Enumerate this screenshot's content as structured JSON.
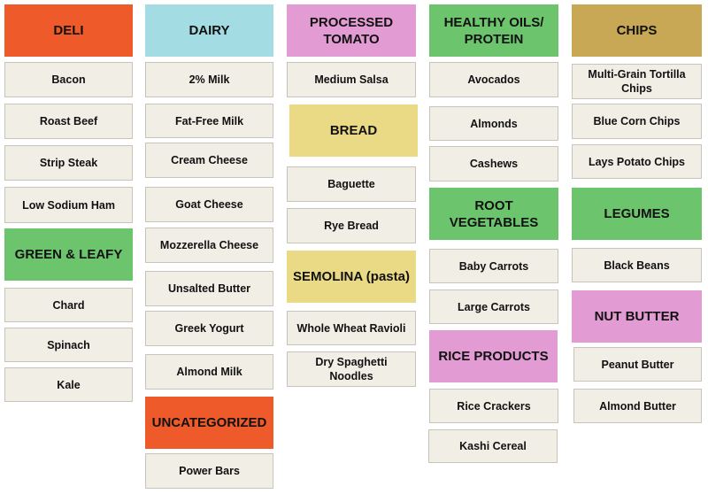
{
  "colors": {
    "deli": "#ef5a2a",
    "dairy": "#a3dde3",
    "processed_tomato": "#e39cd3",
    "healthy_oils": "#6cc56c",
    "chips": "#c8a854",
    "green_leafy": "#6cc56c",
    "bread": "#ead985",
    "semolina": "#ead985",
    "root_vegetables": "#6cc56c",
    "legumes": "#6cc56c",
    "rice_products": "#e39cd3",
    "nut_butter": "#e39cd3",
    "uncategorized": "#ef5a2a",
    "item_bg": "#f1eee6"
  },
  "categories": {
    "deli": "DELI",
    "dairy": "DAIRY",
    "processed_tomato": "PROCESSED TOMATO",
    "healthy_oils": "HEALTHY OILS/ PROTEIN",
    "chips": "CHIPS",
    "green_leafy": "GREEN & LEAFY",
    "bread": "BREAD",
    "semolina": "SEMOLINA (pasta)",
    "root_vegetables": "ROOT VEGETABLES",
    "legumes": "LEGUMES",
    "rice_products": "RICE PRODUCTS",
    "nut_butter": "NUT BUTTER",
    "uncategorized": "UNCATEGORIZED"
  },
  "items": {
    "bacon": "Bacon",
    "roast_beef": "Roast Beef",
    "strip_steak": "Strip Steak",
    "low_sodium_ham": "Low Sodium Ham",
    "chard": "Chard",
    "spinach": "Spinach",
    "kale": "Kale",
    "milk_2": "2% Milk",
    "fat_free_milk": "Fat-Free Milk",
    "cream_cheese": "Cream Cheese",
    "goat_cheese": "Goat Cheese",
    "mozzerella_cheese": "Mozzerella Cheese",
    "unsalted_butter": "Unsalted Butter",
    "greek_yogurt": "Greek Yogurt",
    "almond_milk": "Almond Milk",
    "power_bars": "Power Bars",
    "medium_salsa": "Medium Salsa",
    "baguette": "Baguette",
    "rye_bread": "Rye Bread",
    "whole_wheat_ravioli": "Whole Wheat Ravioli",
    "dry_spaghetti": "Dry Spaghetti Noodles",
    "avocados": "Avocados",
    "almonds": "Almonds",
    "cashews": "Cashews",
    "baby_carrots": "Baby Carrots",
    "large_carrots": "Large Carrots",
    "rice_crackers": "Rice Crackers",
    "kashi_cereal": "Kashi Cereal",
    "multigrain_chips": "Multi-Grain Tortilla Chips",
    "blue_corn_chips": "Blue Corn Chips",
    "lays_chips": "Lays Potato Chips",
    "black_beans": "Black Beans",
    "peanut_butter": "Peanut Butter",
    "almond_butter": "Almond Butter"
  }
}
